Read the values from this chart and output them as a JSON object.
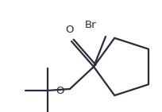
{
  "bg_color": "#ffffff",
  "line_color": "#2a2a3a",
  "text_color": "#2a2a3a",
  "line_width": 1.6,
  "font_size": 9.5,
  "br_label": "Br",
  "o_carbonyl_label": "O",
  "o_ester_label": "O",
  "figsize": [
    2.05,
    1.41
  ],
  "dpi": 100
}
